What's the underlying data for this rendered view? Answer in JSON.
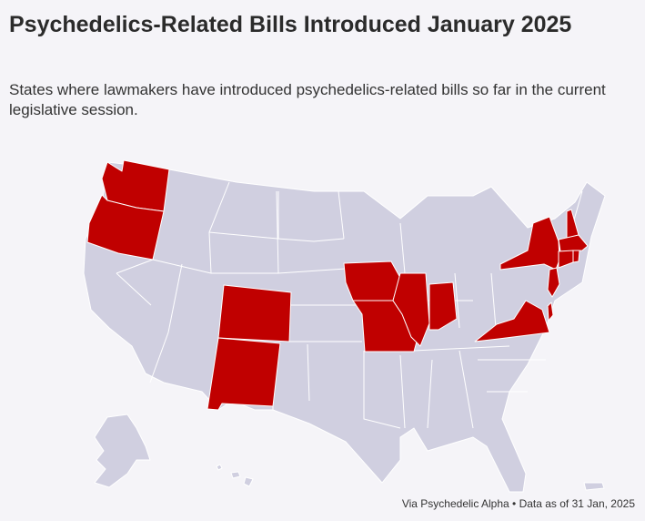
{
  "title": "Psychedelics-Related Bills Introduced January 2025",
  "subtitle": "States where lawmakers have introduced psychedelics-related bills so far in the current legislative session.",
  "source": "Via Psychedelic Alpha • Data as of 31 Jan, 2025",
  "colors": {
    "background": "#f5f4f8",
    "highlighted_state": "#c00000",
    "other_state": "#d0cfe0",
    "border": "#ffffff"
  },
  "highlighted_states": [
    "WA",
    "OR",
    "CO",
    "NM",
    "IA",
    "MO",
    "IL",
    "IN",
    "VA",
    "NY",
    "NH",
    "MA",
    "CT",
    "RI",
    "NJ",
    "MD"
  ]
}
